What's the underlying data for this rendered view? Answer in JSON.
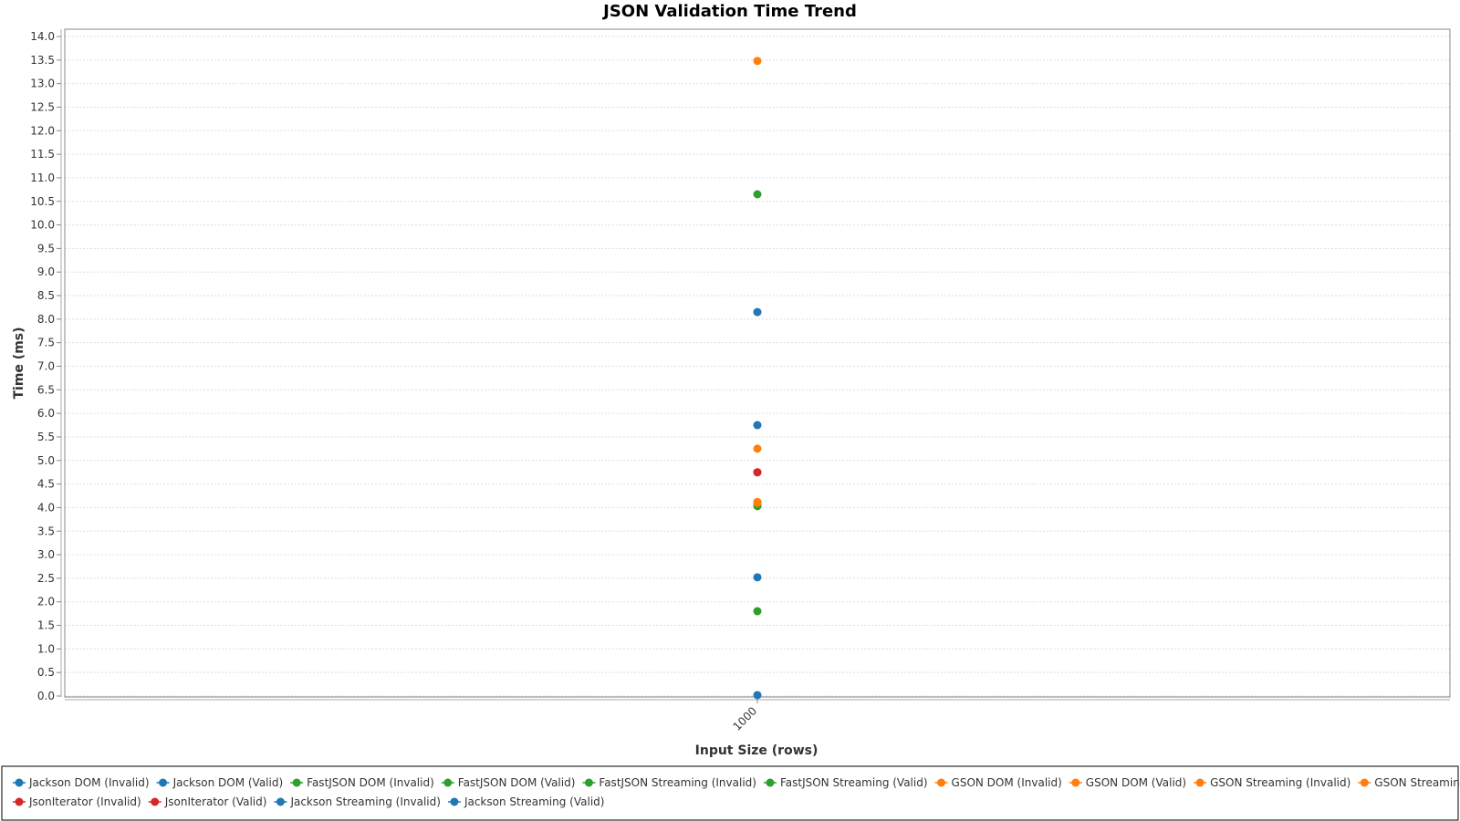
{
  "chart_data": {
    "type": "scatter",
    "title": "JSON Validation Time Trend",
    "xlabel": "Input Size (rows)",
    "ylabel": "Time (ms)",
    "categories": [
      "1000"
    ],
    "ylim": [
      0.0,
      14.0
    ],
    "ytick_step": 0.5,
    "yticks": [
      "0.0",
      "0.5",
      "1.0",
      "1.5",
      "2.0",
      "2.5",
      "3.0",
      "3.5",
      "4.0",
      "4.5",
      "5.0",
      "5.5",
      "6.0",
      "6.5",
      "7.0",
      "7.5",
      "8.0",
      "8.5",
      "9.0",
      "9.5",
      "10.0",
      "10.5",
      "11.0",
      "11.5",
      "12.0",
      "12.5",
      "13.0",
      "13.5",
      "14.0"
    ],
    "grid": true,
    "legend_position": "bottom",
    "series": [
      {
        "name": "Jackson DOM (Invalid)",
        "color": "#1f77b4",
        "values": [
          8.15
        ]
      },
      {
        "name": "Jackson DOM (Valid)",
        "color": "#1f77b4",
        "values": [
          5.75
        ]
      },
      {
        "name": "FastJSON DOM (Invalid)",
        "color": "#2ca02c",
        "values": [
          10.65
        ]
      },
      {
        "name": "FastJSON DOM (Valid)",
        "color": "#2ca02c",
        "values": [
          4.03
        ]
      },
      {
        "name": "FastJSON Streaming (Invalid)",
        "color": "#2ca02c",
        "values": [
          1.8
        ]
      },
      {
        "name": "FastJSON Streaming (Valid)",
        "color": "#2ca02c",
        "values": [
          4.05
        ]
      },
      {
        "name": "GSON DOM (Invalid)",
        "color": "#ff7f0e",
        "values": [
          13.48
        ]
      },
      {
        "name": "GSON DOM (Valid)",
        "color": "#ff7f0e",
        "values": [
          5.25
        ]
      },
      {
        "name": "GSON Streaming (Invalid)",
        "color": "#ff7f0e",
        "values": [
          4.1
        ]
      },
      {
        "name": "GSON Streaming (Valid)",
        "color": "#ff7f0e",
        "values": [
          4.12
        ]
      },
      {
        "name": "JsonIterator (Invalid)",
        "color": "#d62728",
        "values": [
          4.75
        ]
      },
      {
        "name": "JsonIterator (Valid)",
        "color": "#d62728",
        "values": [
          4.75
        ]
      },
      {
        "name": "Jackson Streaming (Invalid)",
        "color": "#1f77b4",
        "values": [
          2.52
        ]
      },
      {
        "name": "Jackson Streaming (Valid)",
        "color": "#1f77b4",
        "values": [
          0.02
        ]
      }
    ]
  }
}
